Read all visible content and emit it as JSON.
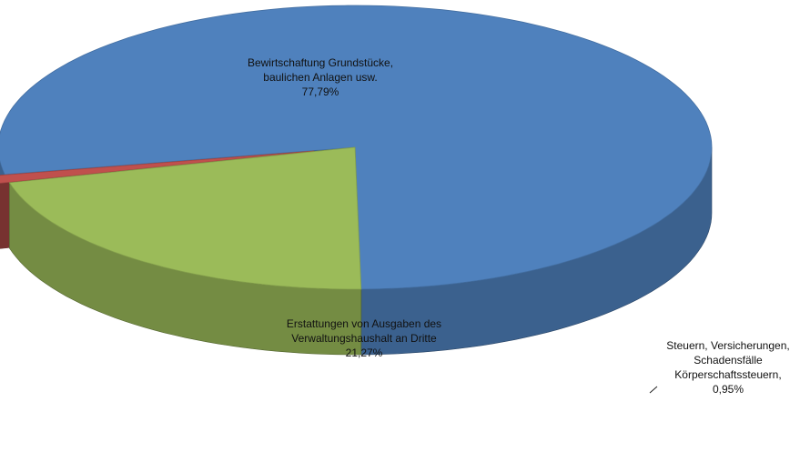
{
  "chart_data": {
    "type": "pie",
    "style": "3d-exploded",
    "title": "",
    "legend": "none",
    "slices": [
      {
        "label_lines": [
          "Bewirtschaftung Grundstücke,",
          "baulichen  Anlagen usw.",
          "77,79%"
        ],
        "value": 77.79,
        "color": "#4f81bd"
      },
      {
        "label_lines": [
          "Steuern, Versicherungen,",
          "Schadensfälle",
          "Körperschaftssteuern,",
          "0,95%"
        ],
        "value": 0.95,
        "color": "#c0504d"
      },
      {
        "label_lines": [
          "Erstattungen von Ausgaben des",
          "Verwaltungshaushalt an Dritte",
          "21,27%"
        ],
        "value": 21.27,
        "color": "#9bbb59"
      }
    ]
  }
}
